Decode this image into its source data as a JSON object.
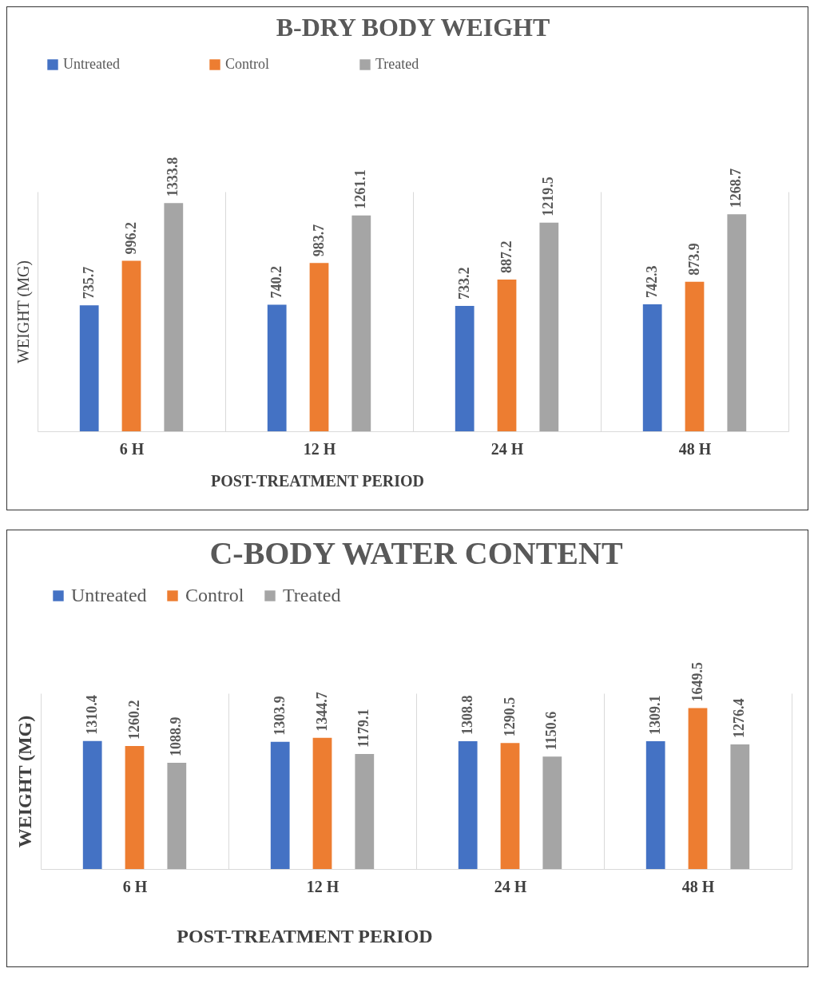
{
  "chart_data": [
    {
      "type": "bar",
      "title": "B-DRY BODY WEIGHT",
      "xlabel": "POST-TREATMENT PERIOD",
      "ylabel": "WEIGHT (MG)",
      "categories": [
        "6 H",
        "12 H",
        "24 H",
        "48 H"
      ],
      "series": [
        {
          "name": "Untreated",
          "color": "#4472c4",
          "values": [
            735.7,
            740.2,
            733.2,
            742.3
          ]
        },
        {
          "name": "Control",
          "color": "#ed7d31",
          "values": [
            996.2,
            983.7,
            887.2,
            873.9
          ]
        },
        {
          "name": "Treated",
          "color": "#a5a5a5",
          "values": [
            1333.8,
            1261.1,
            1219.5,
            1268.7
          ]
        }
      ],
      "data_labels": true,
      "grid": "x",
      "legend": "top"
    },
    {
      "type": "bar",
      "title": "C-BODY WATER CONTENT",
      "xlabel": "POST-TREATMENT PERIOD",
      "ylabel": "WEIGHT (MG)",
      "categories": [
        "6 H",
        "12 H",
        "24 H",
        "48 H"
      ],
      "series": [
        {
          "name": "Untreated",
          "color": "#4472c4",
          "values": [
            1310.4,
            1303.9,
            1308.8,
            1309.1
          ]
        },
        {
          "name": "Control",
          "color": "#ed7d31",
          "values": [
            1260.2,
            1344.7,
            1290.5,
            1649.5
          ]
        },
        {
          "name": "Treated",
          "color": "#a5a5a5",
          "values": [
            1088.9,
            1179.1,
            1150.6,
            1276.4
          ]
        }
      ],
      "data_labels": true,
      "grid": "x",
      "legend": "top"
    }
  ]
}
